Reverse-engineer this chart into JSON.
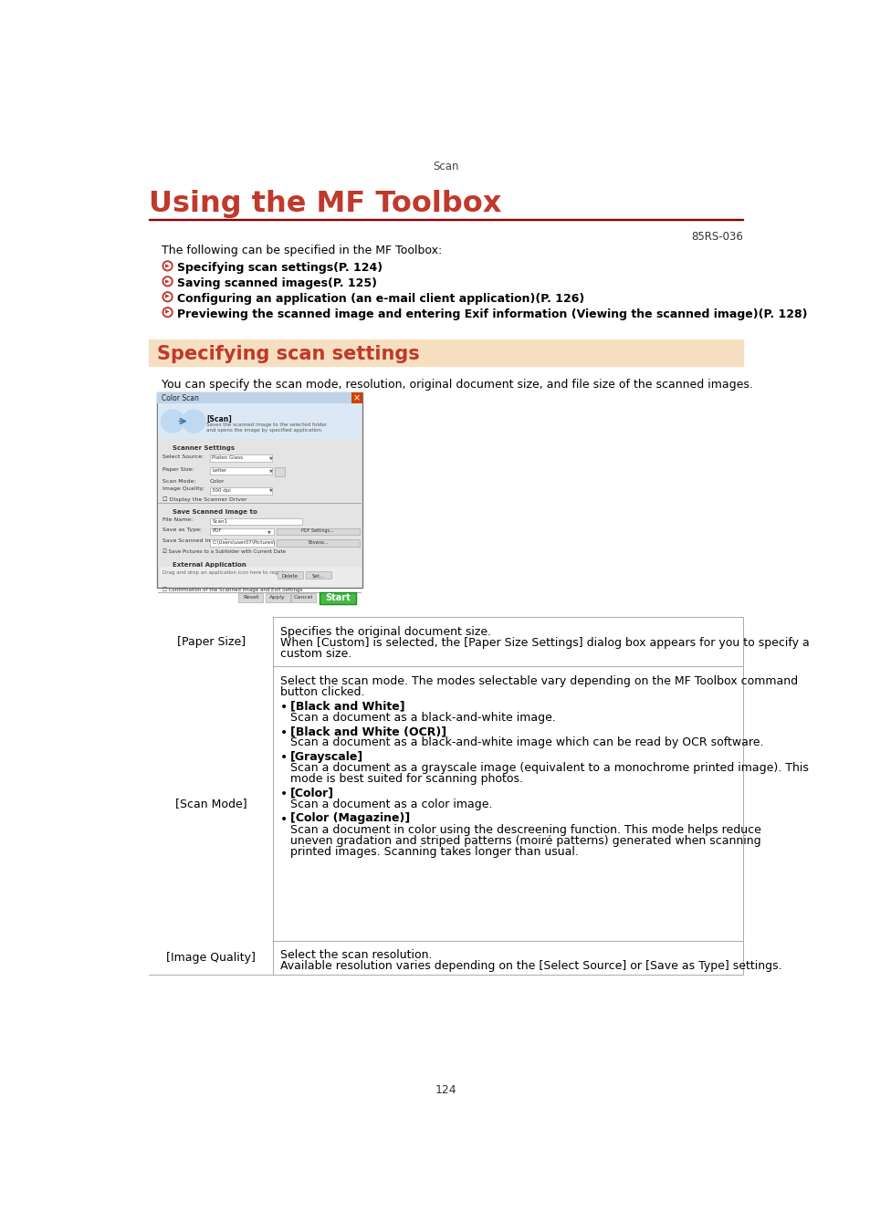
{
  "page_title": "Scan",
  "main_title": "Using the MF Toolbox",
  "code": "85RS-036",
  "intro_text": "The following can be specified in the MF Toolbox:",
  "bullet_items": [
    "Specifying scan settings(P. 124)",
    "Saving scanned images(P. 125)",
    "Configuring an application (an e-mail client application)(P. 126)",
    "Previewing the scanned image and entering Exif information (Viewing the scanned image)(P. 128)"
  ],
  "section_title": "Specifying scan settings",
  "section_bg_color": "#f5dfc0",
  "section_title_color": "#c0392b",
  "section_text": "You can specify the scan mode, resolution, original document size, and file size of the scanned images.",
  "table_rows": [
    {
      "label": "[Paper Size]",
      "lines": [
        "Specifies the original document size.",
        "When [Custom] is selected, the [Paper Size Settings] dialog box appears for you to specify a",
        "custom size."
      ]
    },
    {
      "label": "[Scan Mode]",
      "intro": [
        "Select the scan mode. The modes selectable vary depending on the MF Toolbox command",
        "button clicked."
      ],
      "bullets": [
        {
          "bold": "[Black and White]",
          "lines": [
            "Scan a document as a black-and-white image."
          ]
        },
        {
          "bold": "[Black and White (OCR)]",
          "lines": [
            "Scan a document as a black-and-white image which can be read by OCR software."
          ]
        },
        {
          "bold": "[Grayscale]",
          "lines": [
            "Scan a document as a grayscale image (equivalent to a monochrome printed image). This",
            "mode is best suited for scanning photos."
          ]
        },
        {
          "bold": "[Color]",
          "lines": [
            "Scan a document as a color image."
          ]
        },
        {
          "bold": "[Color (Magazine)]",
          "lines": [
            "Scan a document in color using the descreening function. This mode helps reduce",
            "uneven gradation and striped patterns (moiré patterns) generated when scanning",
            "printed images. Scanning takes longer than usual."
          ]
        }
      ]
    },
    {
      "label": "[Image Quality]",
      "lines": [
        "Select the scan resolution.",
        "Available resolution varies depending on the [Select Source] or [Save as Type] settings."
      ]
    }
  ],
  "page_number": "124",
  "title_color": "#c0392b",
  "line_color": "#8b0000",
  "text_color": "#000000",
  "bullet_icon_color": "#c0392b",
  "bg_color": "#ffffff"
}
